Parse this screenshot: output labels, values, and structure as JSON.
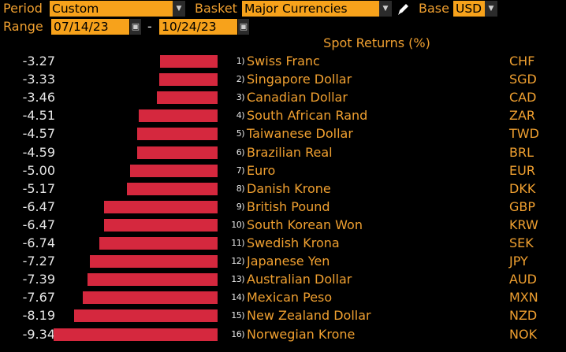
{
  "toolbar": {
    "period_label": "Period",
    "period_value": "Custom",
    "basket_label": "Basket",
    "basket_value": "Major Currencies",
    "base_label": "Base",
    "base_value": "USD",
    "range_label": "Range",
    "range_start": "07/14/23",
    "range_separator": "-",
    "range_end": "10/24/23"
  },
  "colors": {
    "bar": "#d5283e",
    "field_bg": "#f7a21b",
    "label": "#f0a030",
    "background": "#000000"
  },
  "chart_data": {
    "type": "bar",
    "title": "Spot Returns (%)",
    "orientation": "horizontal",
    "max_abs_value": 9.34,
    "rows": [
      {
        "value": "-3.27",
        "num": -3.27,
        "rank": "1)",
        "name": "Swiss Franc",
        "code": "CHF"
      },
      {
        "value": "-3.33",
        "num": -3.33,
        "rank": "2)",
        "name": "Singapore Dollar",
        "code": "SGD"
      },
      {
        "value": "-3.46",
        "num": -3.46,
        "rank": "3)",
        "name": "Canadian Dollar",
        "code": "CAD"
      },
      {
        "value": "-4.51",
        "num": -4.51,
        "rank": "4)",
        "name": "South African Rand",
        "code": "ZAR"
      },
      {
        "value": "-4.57",
        "num": -4.57,
        "rank": "5)",
        "name": "Taiwanese Dollar",
        "code": "TWD"
      },
      {
        "value": "-4.59",
        "num": -4.59,
        "rank": "6)",
        "name": "Brazilian Real",
        "code": "BRL"
      },
      {
        "value": "-5.00",
        "num": -5.0,
        "rank": "7)",
        "name": "Euro",
        "code": "EUR"
      },
      {
        "value": "-5.17",
        "num": -5.17,
        "rank": "8)",
        "name": "Danish Krone",
        "code": "DKK"
      },
      {
        "value": "-6.47",
        "num": -6.47,
        "rank": "9)",
        "name": "British Pound",
        "code": "GBP"
      },
      {
        "value": "-6.47",
        "num": -6.47,
        "rank": "10)",
        "name": "South Korean Won",
        "code": "KRW"
      },
      {
        "value": "-6.74",
        "num": -6.74,
        "rank": "11)",
        "name": "Swedish Krona",
        "code": "SEK"
      },
      {
        "value": "-7.27",
        "num": -7.27,
        "rank": "12)",
        "name": "Japanese Yen",
        "code": "JPY"
      },
      {
        "value": "-7.39",
        "num": -7.39,
        "rank": "13)",
        "name": "Australian Dollar",
        "code": "AUD"
      },
      {
        "value": "-7.67",
        "num": -7.67,
        "rank": "14)",
        "name": "Mexican Peso",
        "code": "MXN"
      },
      {
        "value": "-8.19",
        "num": -8.19,
        "rank": "15)",
        "name": "New Zealand Dollar",
        "code": "NZD"
      },
      {
        "value": "-9.34",
        "num": -9.34,
        "rank": "16)",
        "name": "Norwegian Krone",
        "code": "NOK"
      }
    ]
  }
}
